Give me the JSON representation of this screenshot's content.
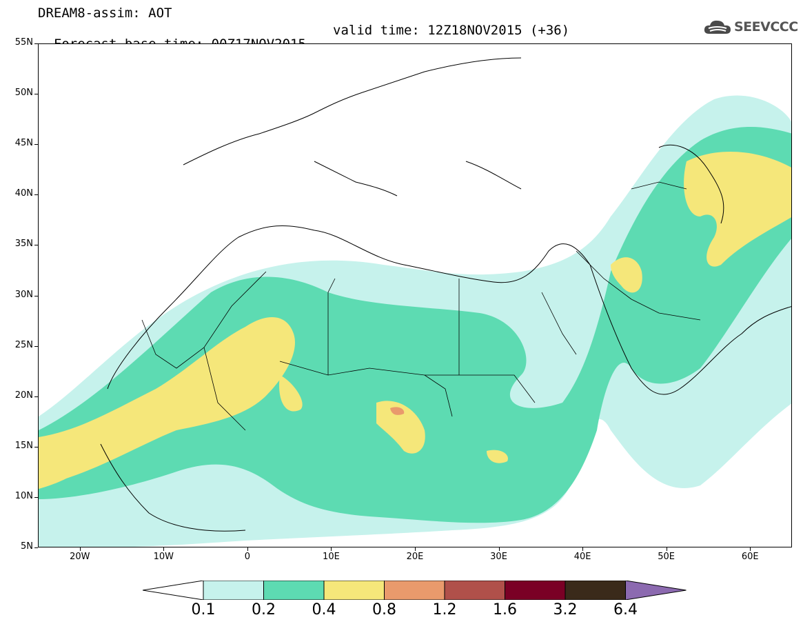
{
  "header": {
    "title": "DREAM8-assim: AOT",
    "base_time": "Forecast base time: 00Z17NOV2015",
    "valid_time": "valid time: 12Z18NOV2015 (+36)"
  },
  "logo": {
    "text": "SEEVCCC",
    "icon": "cloud-icon"
  },
  "map": {
    "lon_range": [
      -25,
      65
    ],
    "lat_range": [
      5,
      55
    ],
    "lat_labels": [
      "55N",
      "50N",
      "45N",
      "40N",
      "35N",
      "30N",
      "25N",
      "20N",
      "15N",
      "10N",
      "5N"
    ],
    "lon_labels": [
      "20W",
      "10W",
      "0",
      "10E",
      "20E",
      "30E",
      "40E",
      "50E",
      "60E"
    ]
  },
  "colorbar": {
    "labels": [
      "0.1",
      "0.2",
      "0.4",
      "0.8",
      "1.2",
      "1.6",
      "3.2",
      "6.4"
    ],
    "colors": [
      "#c6f2ec",
      "#5ddbb2",
      "#f5e77a",
      "#e99a6c",
      "#b0504a",
      "#7a0025",
      "#3a2a1a",
      "#8c6ab0"
    ],
    "under_color": "#ffffff"
  }
}
